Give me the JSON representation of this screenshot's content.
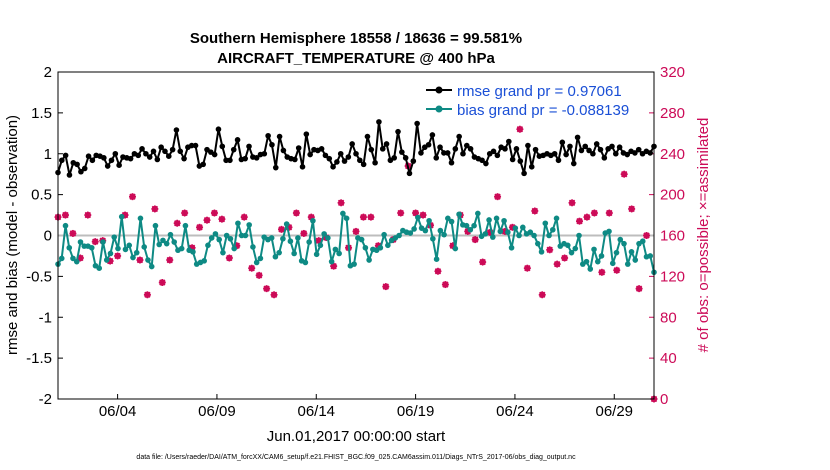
{
  "chart_data": {
    "type": "line",
    "title": "Southern Hemisphere 18558 / 18636 = 99.581%",
    "subtitle": "AIRCRAFT_TEMPERATURE @ 400 hPa",
    "xlabel": "Jun.01,2017 00:00:00 start",
    "ylabel": "rmse and bias (model - observation)",
    "ylabel_right": "# of obs: o=possible; ×=assimilated",
    "xlim": [
      1.0,
      31.0
    ],
    "ylim": [
      -2,
      2
    ],
    "ylim_right": [
      0,
      320
    ],
    "x_ticks": [
      {
        "value": 4.0,
        "label": "06/04"
      },
      {
        "value": 9.0,
        "label": "06/09"
      },
      {
        "value": 14.0,
        "label": "06/14"
      },
      {
        "value": 19.0,
        "label": "06/19"
      },
      {
        "value": 24.0,
        "label": "06/24"
      },
      {
        "value": 29.0,
        "label": "06/29"
      }
    ],
    "y_ticks": [
      "-2",
      "-1.5",
      "-1",
      "-0.5",
      "0",
      "0.5",
      "1",
      "1.5",
      "2"
    ],
    "y_ticks_right": [
      "0",
      "40",
      "80",
      "120",
      "160",
      "200",
      "240",
      "280",
      "320"
    ],
    "legend_position": "top-right",
    "zero_line": 0,
    "colors": {
      "rmse": "#000000",
      "bias": "#0e8a84",
      "obs": "#cc0a57",
      "zero": "#bdbdbd"
    },
    "series": [
      {
        "name": "rmse grand pr = 0.97061",
        "values": [
          0.77,
          0.92,
          0.98,
          0.74,
          0.89,
          0.87,
          0.78,
          0.82,
          0.97,
          0.92,
          0.98,
          0.97,
          0.95,
          0.85,
          0.92,
          1.0,
          0.86,
          0.96,
          0.95,
          0.94,
          1.0,
          0.98,
          1.06,
          1.0,
          0.96,
          1.03,
          0.93,
          1.08,
          1.03,
          0.97,
          1.05,
          1.29,
          1.03,
          0.94,
          1.08,
          1.1,
          1.1,
          0.85,
          0.87,
          1.05,
          1.02,
          0.99,
          1.3,
          1.09,
          0.92,
          0.92,
          1.05,
          1.17,
          0.93,
          0.94,
          1.09,
          0.96,
          0.95,
          0.99,
          1.0,
          1.22,
          1.11,
          0.83,
          1.21,
          1.04,
          0.96,
          0.94,
          0.93,
          1.07,
          0.84,
          1.24,
          0.99,
          1.05,
          1.04,
          1.06,
          0.98,
          0.94,
          0.84,
          0.9,
          1.0,
          0.91,
          0.96,
          1.12,
          1.0,
          0.92,
          0.87,
          1.21,
          1.05,
          0.89,
          1.39,
          1.06,
          1.12,
          0.92,
          0.95,
          1.27,
          1.02,
          0.95,
          0.76,
          0.91,
          1.37,
          1.01,
          1.08,
          1.11,
          1.23,
          0.95,
          1.08,
          1.01,
          1.01,
          0.89,
          1.06,
          1.21,
          1.0,
          1.1,
          1.06,
          0.96,
          0.94,
          0.92,
          0.88,
          1.0,
          1.03,
          0.98,
          1.08,
          1.06,
          1.15,
          0.93,
          1.06,
          0.91,
          0.76,
          1.1,
          0.84,
          1.05,
          0.97,
          0.98,
          1.0,
          0.98,
          1.0,
          0.92,
          1.14,
          0.99,
          1.09,
          0.88,
          1.2,
          1.04,
          1.09,
          1.04,
          1.0,
          1.12,
          1.05,
          0.95,
          1.06,
          1.09,
          1.0,
          1.08,
          1.01,
          0.99,
          1.03,
          1.01,
          1.05,
          1.0,
          1.03,
          1.01,
          1.09
        ]
      },
      {
        "name": "bias grand pr = -0.088139",
        "values": [
          -0.35,
          -0.28,
          0.12,
          -0.15,
          -0.28,
          -0.32,
          -0.08,
          -0.13,
          -0.13,
          -0.15,
          -0.37,
          -0.4,
          -0.08,
          -0.3,
          -0.22,
          -0.02,
          -0.16,
          0.23,
          -0.17,
          -0.12,
          -0.27,
          -0.21,
          0.21,
          -0.14,
          -0.3,
          -0.38,
          0.12,
          -0.11,
          -0.06,
          -0.1,
          0.01,
          -0.08,
          -0.18,
          -0.16,
          0.12,
          -0.18,
          -0.2,
          -0.35,
          -0.33,
          -0.31,
          -0.12,
          -0.03,
          0.02,
          -0.05,
          -0.21,
          0.0,
          -0.04,
          -0.16,
          0.15,
          0.0,
          0.0,
          0.13,
          -0.14,
          -0.33,
          -0.28,
          -0.02,
          -0.05,
          -0.03,
          -0.26,
          -0.21,
          -0.04,
          0.14,
          -0.07,
          -0.22,
          -0.03,
          -0.31,
          -0.33,
          -0.08,
          0.18,
          -0.23,
          -0.12,
          0.02,
          -0.03,
          -0.32,
          -0.17,
          -0.22,
          0.27,
          0.21,
          -0.37,
          -0.35,
          -0.03,
          -0.05,
          -0.15,
          -0.3,
          -0.17,
          -0.18,
          -0.15,
          0.01,
          -0.12,
          -0.06,
          -0.03,
          0.0,
          0.06,
          0.04,
          0.03,
          0.08,
          0.22,
          0.09,
          0.06,
          0.18,
          -0.04,
          -0.29,
          0.06,
          0.01,
          0.21,
          0.17,
          -0.16,
          0.26,
          0.13,
          0.12,
          0.07,
          0.12,
          0.27,
          -0.01,
          0.02,
          0.19,
          -0.02,
          0.21,
          0.05,
          0.18,
          0.04,
          -0.15,
          0.09,
          0.0,
          0.1,
          0.02,
          0.04,
          0.0,
          -0.1,
          -0.2,
          0.15,
          0.0,
          0.07,
          0.21,
          -0.13,
          -0.1,
          -0.12,
          -0.21,
          -0.16,
          0.0,
          -0.35,
          -0.32,
          -0.41,
          -0.17,
          -0.32,
          -0.25,
          0.03,
          0.05,
          -0.34,
          -0.21,
          -0.05,
          -0.1,
          -0.35,
          -0.2,
          -0.3,
          -0.1,
          -0.07,
          -0.26,
          -0.25,
          -0.45
        ]
      },
      {
        "name": "# of obs possible",
        "values": [
          178,
          180,
          180,
          170,
          162,
          128,
          138,
          130,
          180,
          180,
          154,
          124,
          155,
          143,
          135,
          110,
          140,
          125,
          180,
          162,
          198,
          112,
          136,
          150,
          102,
          115,
          186,
          178,
          114,
          168,
          136,
          137,
          172,
          120,
          182,
          164,
          148,
          114,
          168,
          126,
          175,
          106,
          182,
          180,
          176,
          182,
          138,
          160,
          150,
          190,
          178,
          174,
          128,
          144,
          121,
          152,
          108,
          184,
          102,
          154,
          166,
          186,
          168,
          140,
          182,
          160,
          162,
          180,
          178,
          195,
          155,
          188,
          158,
          144,
          130,
          200,
          192,
          184,
          148,
          172,
          164,
          190,
          178,
          130,
          178,
          144,
          150,
          102,
          110,
          120,
          156,
          176,
          182,
          210,
          228,
          250,
          182,
          186,
          180,
          224,
          170,
          108,
          125,
          134,
          112,
          166,
          150,
          164,
          180,
          152,
          164,
          196,
          156,
          200,
          134,
          160,
          163,
          115,
          198,
          174,
          164,
          170,
          168,
          208,
          264,
          182,
          128,
          162,
          184,
          130,
          102,
          150,
          146,
          194,
          132,
          192,
          138,
          180,
          192,
          166,
          174,
          134,
          178,
          162,
          182,
          174,
          124,
          160,
          182,
          144,
          126,
          154,
          220,
          166,
          186,
          104,
          108,
          208,
          160,
          156,
          0
        ]
      },
      {
        "name": "# of obs assimilated",
        "values": [
          178,
          180,
          180,
          170,
          162,
          128,
          138,
          130,
          180,
          180,
          154,
          124,
          155,
          143,
          135,
          110,
          140,
          125,
          180,
          162,
          198,
          112,
          136,
          150,
          102,
          115,
          186,
          178,
          114,
          168,
          136,
          137,
          172,
          120,
          182,
          164,
          148,
          114,
          168,
          126,
          175,
          106,
          182,
          180,
          176,
          182,
          138,
          160,
          150,
          190,
          178,
          174,
          128,
          144,
          121,
          152,
          108,
          184,
          102,
          154,
          166,
          186,
          168,
          140,
          182,
          160,
          162,
          180,
          178,
          195,
          155,
          188,
          158,
          144,
          130,
          200,
          192,
          184,
          148,
          172,
          164,
          190,
          178,
          130,
          178,
          144,
          150,
          102,
          110,
          120,
          156,
          176,
          182,
          210,
          228,
          250,
          182,
          186,
          180,
          224,
          170,
          108,
          125,
          134,
          112,
          166,
          150,
          164,
          180,
          152,
          164,
          196,
          156,
          200,
          134,
          160,
          163,
          115,
          198,
          174,
          164,
          170,
          168,
          208,
          264,
          182,
          128,
          162,
          184,
          130,
          102,
          150,
          146,
          194,
          132,
          192,
          138,
          180,
          192,
          166,
          174,
          134,
          178,
          162,
          182,
          174,
          124,
          160,
          182,
          144,
          126,
          154,
          220,
          166,
          186,
          104,
          108,
          208,
          160,
          156,
          0
        ]
      }
    ],
    "footnote": "data file: /Users/raeder/DAI/ATM_forcXX/CAM6_setup/f.e21.FHIST_BGC.f09_025.CAM6assim.011/Diags_NTrS_2017-06/obs_diag_output.nc"
  }
}
